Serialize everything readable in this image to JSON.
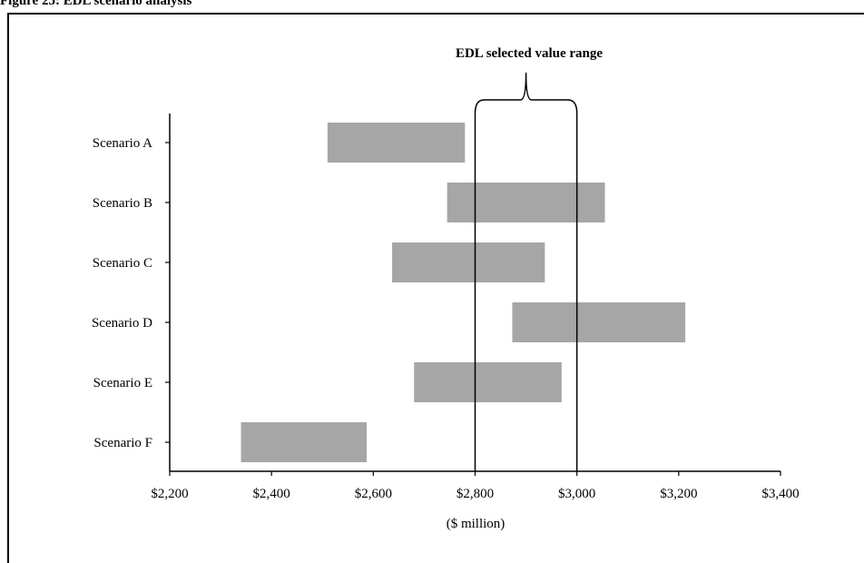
{
  "figure_title": "Figure 25: EDL scenario analysis",
  "chart_data": {
    "type": "bar",
    "orientation": "horizontal-floating-range",
    "categories": [
      "Scenario A",
      "Scenario B",
      "Scenario C",
      "Scenario D",
      "Scenario E",
      "Scenario F"
    ],
    "ranges": [
      {
        "low": 2510,
        "high": 2780
      },
      {
        "low": 2745,
        "high": 3055
      },
      {
        "low": 2637,
        "high": 2937
      },
      {
        "low": 2873,
        "high": 3213
      },
      {
        "low": 2680,
        "high": 2970
      },
      {
        "low": 2340,
        "high": 2587
      }
    ],
    "xlabel": "($ million)",
    "ylabel": "",
    "xlim": [
      2200,
      3400
    ],
    "xticks": [
      2200,
      2400,
      2600,
      2800,
      3000,
      3200,
      3400
    ],
    "xtick_labels": [
      "$2,200",
      "$2,400",
      "$2,600",
      "$2,800",
      "$3,000",
      "$3,200",
      "$3,400"
    ],
    "grid": false,
    "bar_color": "#a6a6a6",
    "selected_range": {
      "label": "EDL selected value range",
      "low": 2800,
      "high": 3000
    }
  }
}
